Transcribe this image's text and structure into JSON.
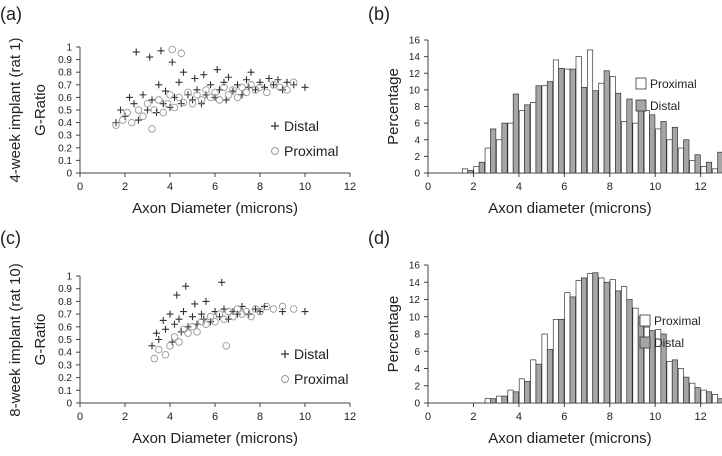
{
  "figure": {
    "row_labels": [
      "4-week implant (rat 1)",
      "8-week implant (rat 10)"
    ]
  },
  "chart_data": [
    {
      "type": "scatter",
      "panel_label": "(a)",
      "xlabel": "Axon Diameter (microns)",
      "ylabel": "G-Ratio",
      "xlim": [
        0,
        12
      ],
      "ylim": [
        0,
        1
      ],
      "x_ticks": [
        "0",
        "2",
        "4",
        "6",
        "8",
        "10",
        "12"
      ],
      "y_ticks": [
        "0",
        "0.1",
        "0.2",
        "0.3",
        "0.4",
        "0.5",
        "0.6",
        "0.7",
        "0.8",
        "0.9",
        "1"
      ],
      "grid": false,
      "legend": [
        "Distal",
        "Proximal"
      ],
      "series": [
        {
          "name": "Distal",
          "marker": "plus",
          "color": "#333333",
          "points": [
            [
              1.6,
              0.4
            ],
            [
              1.8,
              0.5
            ],
            [
              2.0,
              0.45
            ],
            [
              2.2,
              0.6
            ],
            [
              2.4,
              0.55
            ],
            [
              2.5,
              0.96
            ],
            [
              2.6,
              0.42
            ],
            [
              2.8,
              0.62
            ],
            [
              3.0,
              0.5
            ],
            [
              3.1,
              0.92
            ],
            [
              3.2,
              0.58
            ],
            [
              3.4,
              0.48
            ],
            [
              3.5,
              0.7
            ],
            [
              3.6,
              0.97
            ],
            [
              3.7,
              0.55
            ],
            [
              3.8,
              0.65
            ],
            [
              4.0,
              0.52
            ],
            [
              4.1,
              0.88
            ],
            [
              4.2,
              0.6
            ],
            [
              4.4,
              0.72
            ],
            [
              4.5,
              0.55
            ],
            [
              4.6,
              0.8
            ],
            [
              4.8,
              0.62
            ],
            [
              5.0,
              0.58
            ],
            [
              5.1,
              0.75
            ],
            [
              5.2,
              0.66
            ],
            [
              5.4,
              0.55
            ],
            [
              5.5,
              0.78
            ],
            [
              5.6,
              0.62
            ],
            [
              5.8,
              0.7
            ],
            [
              6.0,
              0.6
            ],
            [
              6.1,
              0.82
            ],
            [
              6.2,
              0.66
            ],
            [
              6.4,
              0.72
            ],
            [
              6.5,
              0.58
            ],
            [
              6.6,
              0.76
            ],
            [
              6.8,
              0.65
            ],
            [
              7.0,
              0.7
            ],
            [
              7.2,
              0.62
            ],
            [
              7.4,
              0.74
            ],
            [
              7.5,
              0.68
            ],
            [
              7.6,
              0.8
            ],
            [
              7.8,
              0.66
            ],
            [
              8.0,
              0.72
            ],
            [
              8.2,
              0.68
            ],
            [
              8.4,
              0.75
            ],
            [
              8.6,
              0.7
            ],
            [
              8.8,
              0.74
            ],
            [
              9.0,
              0.66
            ],
            [
              9.2,
              0.72
            ],
            [
              9.5,
              0.7
            ],
            [
              10.0,
              0.68
            ]
          ]
        },
        {
          "name": "Proximal",
          "marker": "circle",
          "color": "#999999",
          "points": [
            [
              1.6,
              0.38
            ],
            [
              1.9,
              0.42
            ],
            [
              2.1,
              0.48
            ],
            [
              2.3,
              0.4
            ],
            [
              2.6,
              0.5
            ],
            [
              2.8,
              0.45
            ],
            [
              3.0,
              0.55
            ],
            [
              3.2,
              0.35
            ],
            [
              3.3,
              0.5
            ],
            [
              3.5,
              0.58
            ],
            [
              3.7,
              0.48
            ],
            [
              3.9,
              0.55
            ],
            [
              4.0,
              0.62
            ],
            [
              4.1,
              0.98
            ],
            [
              4.2,
              0.52
            ],
            [
              4.4,
              0.6
            ],
            [
              4.5,
              0.95
            ],
            [
              4.6,
              0.56
            ],
            [
              4.8,
              0.64
            ],
            [
              5.0,
              0.55
            ],
            [
              5.2,
              0.62
            ],
            [
              5.4,
              0.58
            ],
            [
              5.6,
              0.66
            ],
            [
              5.8,
              0.6
            ],
            [
              6.0,
              0.64
            ],
            [
              6.2,
              0.58
            ],
            [
              6.4,
              0.68
            ],
            [
              6.6,
              0.62
            ],
            [
              6.8,
              0.66
            ],
            [
              7.0,
              0.6
            ],
            [
              7.2,
              0.68
            ],
            [
              7.4,
              0.64
            ],
            [
              7.6,
              0.7
            ],
            [
              7.8,
              0.66
            ],
            [
              8.0,
              0.68
            ],
            [
              8.3,
              0.64
            ],
            [
              8.6,
              0.7
            ],
            [
              8.9,
              0.68
            ],
            [
              9.2,
              0.66
            ],
            [
              9.5,
              0.72
            ]
          ]
        }
      ]
    },
    {
      "type": "bar",
      "panel_label": "(b)",
      "xlabel": "Axon diameter (microns)",
      "ylabel": "Percentage",
      "xlim": [
        0,
        12.5
      ],
      "ylim": [
        0,
        16
      ],
      "x_ticks": [
        "0",
        "2",
        "4",
        "6",
        "8",
        "10",
        "12"
      ],
      "y_ticks": [
        "0",
        "2",
        "4",
        "6",
        "8",
        "10",
        "12",
        "14",
        "16"
      ],
      "grid": false,
      "bin_start": 1.5,
      "bin_width": 0.5,
      "legend": [
        "Proximal",
        "Distal"
      ],
      "series": [
        {
          "name": "Proximal",
          "fill": "#ffffff",
          "values": [
            0.5,
            0.8,
            3.0,
            4.0,
            6.0,
            7.5,
            8.5,
            10.5,
            13.6,
            12.5,
            14.0,
            14.8,
            10.8,
            11.6,
            6.2,
            6.0,
            7.5,
            5.3,
            4.0,
            3.0,
            1.5,
            0.8,
            0.5,
            0,
            0,
            0,
            0,
            0
          ]
        },
        {
          "name": "Distal",
          "fill": "#a6a6a6",
          "values": [
            0.3,
            1.3,
            5.3,
            6.0,
            9.5,
            8.2,
            10.5,
            11.0,
            12.6,
            12.5,
            10.3,
            9.9,
            12.3,
            9.6,
            8.9,
            8.0,
            7.0,
            6.2,
            5.5,
            4.0,
            2.2,
            1.3,
            2.5,
            1.5,
            0.8,
            0.5,
            0,
            0
          ]
        }
      ]
    },
    {
      "type": "scatter",
      "panel_label": "(c)",
      "xlabel": "Axon Diameter (microns)",
      "ylabel": "G-Ratio",
      "xlim": [
        0,
        12
      ],
      "ylim": [
        0,
        1
      ],
      "x_ticks": [
        "0",
        "2",
        "4",
        "6",
        "8",
        "10",
        "12"
      ],
      "y_ticks": [
        "0",
        "0.1",
        "0.2",
        "0.3",
        "0.4",
        "0.5",
        "0.6",
        "0.7",
        "0.8",
        "0.9",
        "1"
      ],
      "grid": false,
      "legend": [
        "Distal",
        "Proximal"
      ],
      "series": [
        {
          "name": "Distal",
          "marker": "plus",
          "color": "#333333",
          "points": [
            [
              3.2,
              0.45
            ],
            [
              3.4,
              0.55
            ],
            [
              3.5,
              0.5
            ],
            [
              3.7,
              0.65
            ],
            [
              3.8,
              0.58
            ],
            [
              4.0,
              0.7
            ],
            [
              4.1,
              0.48
            ],
            [
              4.2,
              0.62
            ],
            [
              4.3,
              0.85
            ],
            [
              4.4,
              0.66
            ],
            [
              4.5,
              0.56
            ],
            [
              4.6,
              0.72
            ],
            [
              4.7,
              0.92
            ],
            [
              4.8,
              0.6
            ],
            [
              5.0,
              0.68
            ],
            [
              5.1,
              0.78
            ],
            [
              5.2,
              0.62
            ],
            [
              5.4,
              0.7
            ],
            [
              5.5,
              0.66
            ],
            [
              5.6,
              0.8
            ],
            [
              5.8,
              0.64
            ],
            [
              6.0,
              0.72
            ],
            [
              6.2,
              0.68
            ],
            [
              6.3,
              0.95
            ],
            [
              6.4,
              0.74
            ],
            [
              6.6,
              0.66
            ],
            [
              6.8,
              0.72
            ],
            [
              7.0,
              0.7
            ],
            [
              7.2,
              0.76
            ],
            [
              7.5,
              0.7
            ],
            [
              7.8,
              0.74
            ],
            [
              8.0,
              0.72
            ],
            [
              8.2,
              0.76
            ],
            [
              9.0,
              0.72
            ],
            [
              10.0,
              0.72
            ]
          ]
        },
        {
          "name": "Proximal",
          "marker": "circle",
          "color": "#999999",
          "points": [
            [
              3.3,
              0.35
            ],
            [
              3.5,
              0.42
            ],
            [
              3.8,
              0.38
            ],
            [
              4.0,
              0.45
            ],
            [
              4.2,
              0.52
            ],
            [
              4.4,
              0.48
            ],
            [
              4.6,
              0.58
            ],
            [
              4.8,
              0.55
            ],
            [
              5.0,
              0.6
            ],
            [
              5.2,
              0.56
            ],
            [
              5.4,
              0.64
            ],
            [
              5.6,
              0.62
            ],
            [
              5.8,
              0.68
            ],
            [
              6.0,
              0.64
            ],
            [
              6.2,
              0.7
            ],
            [
              6.4,
              0.66
            ],
            [
              6.6,
              0.72
            ],
            [
              6.8,
              0.68
            ],
            [
              7.0,
              0.74
            ],
            [
              7.2,
              0.7
            ],
            [
              7.4,
              0.72
            ],
            [
              7.6,
              0.68
            ],
            [
              7.8,
              0.74
            ],
            [
              8.0,
              0.72
            ],
            [
              8.3,
              0.76
            ],
            [
              8.6,
              0.74
            ],
            [
              9.0,
              0.76
            ],
            [
              9.5,
              0.74
            ],
            [
              6.5,
              0.45
            ]
          ]
        }
      ]
    },
    {
      "type": "bar",
      "panel_label": "(d)",
      "xlabel": "Axon diameter (microns)",
      "ylabel": "Percentage",
      "xlim": [
        0,
        12.5
      ],
      "ylim": [
        0,
        16
      ],
      "x_ticks": [
        "0",
        "2",
        "4",
        "6",
        "8",
        "10",
        "12"
      ],
      "y_ticks": [
        "0",
        "2",
        "4",
        "6",
        "8",
        "10",
        "12",
        "14",
        "16"
      ],
      "grid": false,
      "bin_start": 2.5,
      "bin_width": 0.5,
      "legend": [
        "Proximal",
        "Distal"
      ],
      "series": [
        {
          "name": "Proximal",
          "fill": "#ffffff",
          "values": [
            0.5,
            0.8,
            1.5,
            2.8,
            5.0,
            8.0,
            9.7,
            12.8,
            14.2,
            15.0,
            14.5,
            14.3,
            13.5,
            11.0,
            8.8,
            8.5,
            4.8,
            4.0,
            2.3,
            1.5,
            1.0,
            0.5,
            0.2
          ]
        },
        {
          "name": "Distal",
          "fill": "#a6a6a6",
          "values": [
            0.5,
            0.8,
            1.3,
            2.5,
            4.5,
            6.2,
            9.7,
            12.3,
            14.5,
            15.1,
            14.0,
            13.0,
            12.0,
            10.0,
            8.4,
            8.0,
            5.0,
            3.0,
            1.8,
            1.3,
            0.5,
            0.3,
            0.2
          ]
        }
      ]
    }
  ]
}
